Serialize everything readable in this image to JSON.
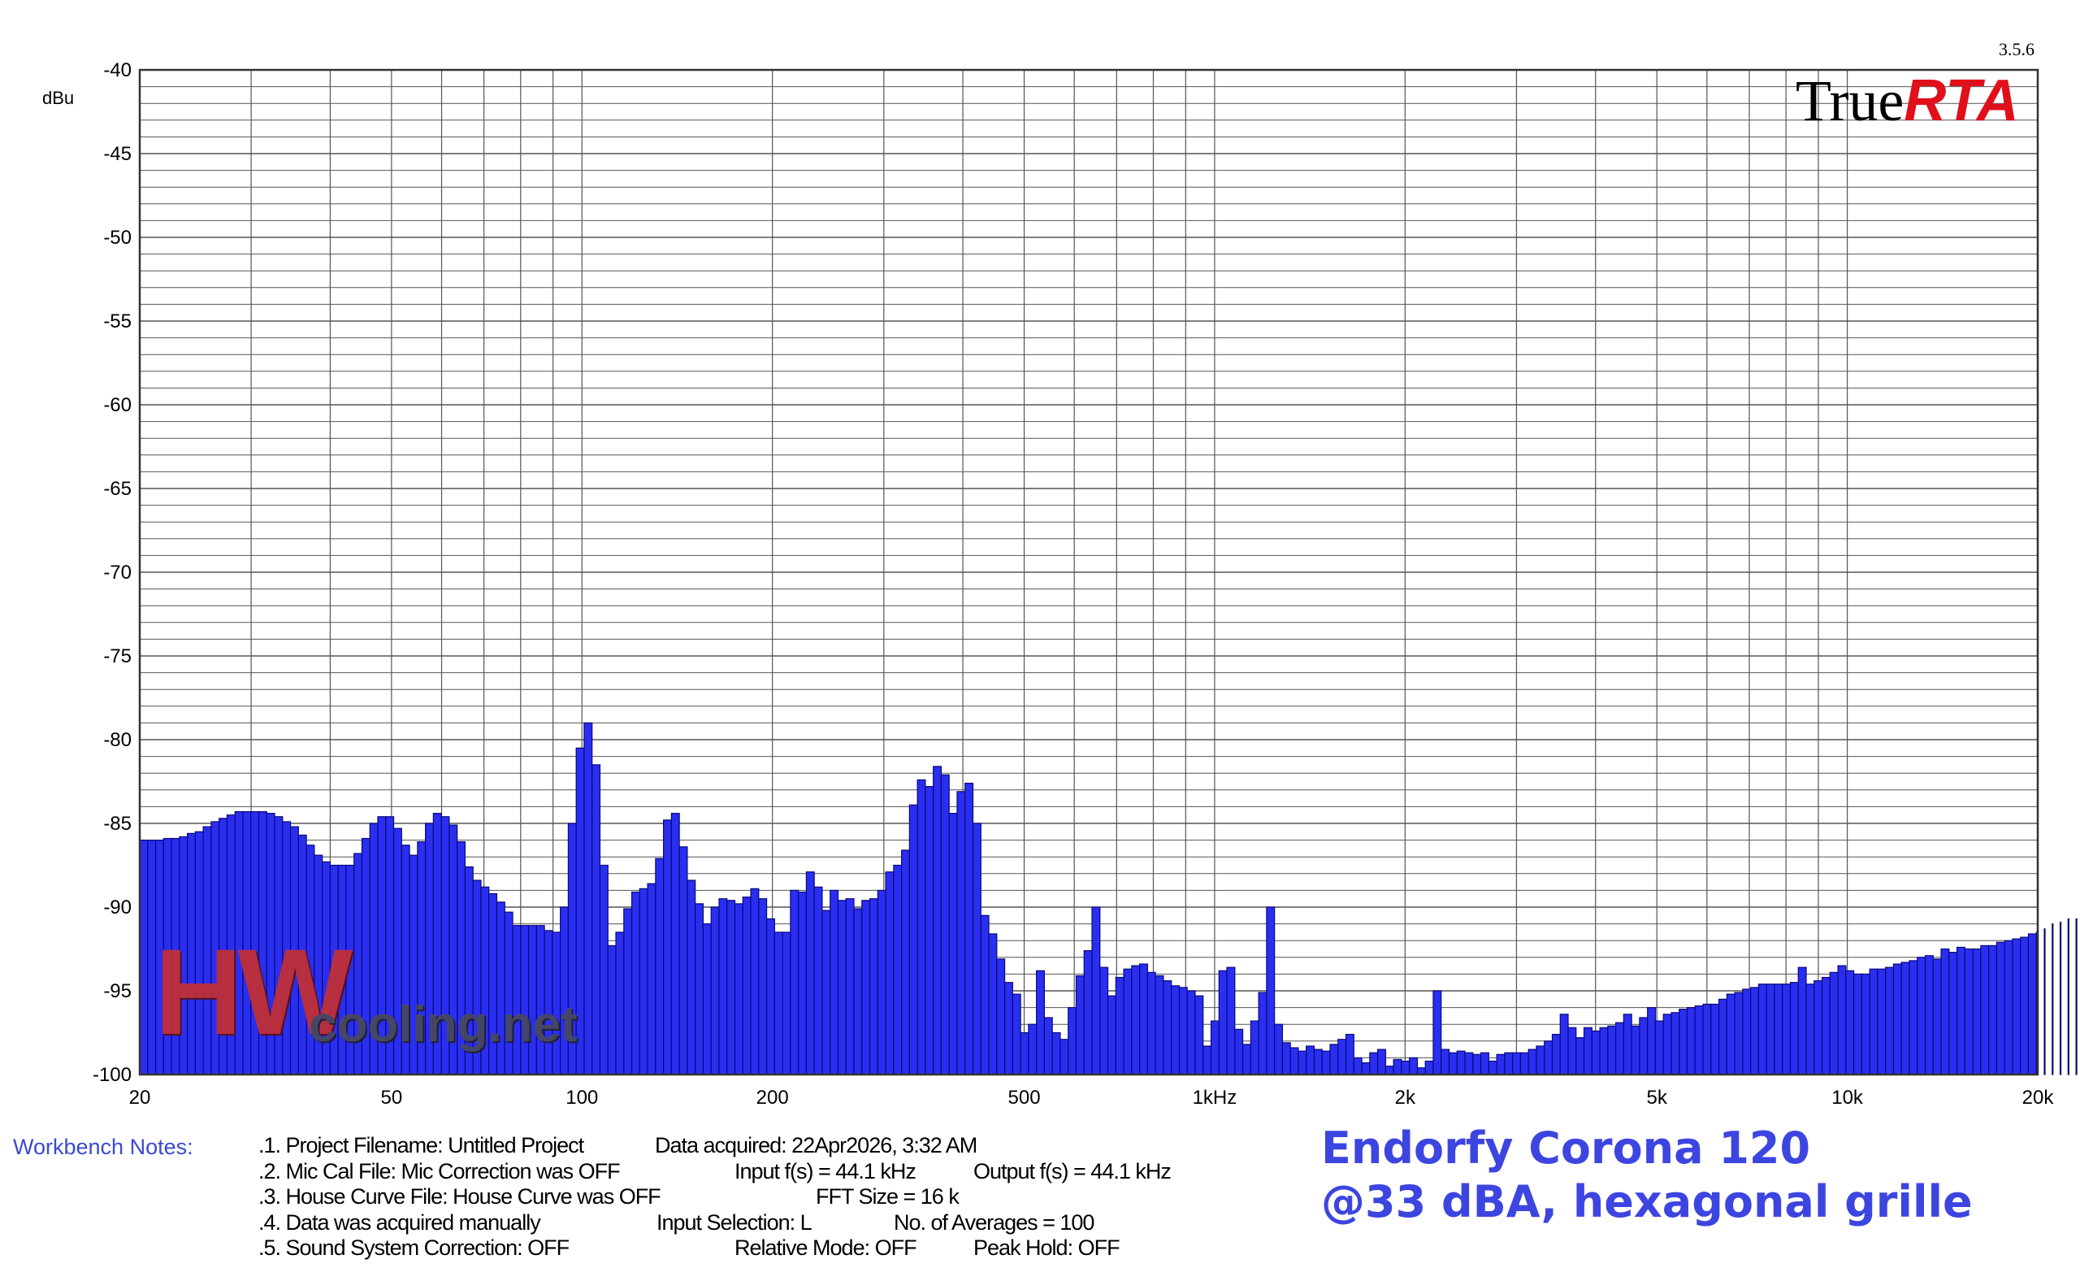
{
  "app": {
    "version": "3.5.6",
    "brand_part1": "True",
    "brand_part2": "RTA"
  },
  "watermark": {
    "logo": "HW",
    "site": "cooling.net"
  },
  "colors": {
    "bar_fill": "#2a2ef0",
    "bar_stroke": "#0a0a7a",
    "grid": "#555555",
    "headline": "#3d45e0",
    "notes_title": "#3a4bd0",
    "brand_red": "#e0101a"
  },
  "chart_data": {
    "type": "bar",
    "y_unit": "dBu",
    "ylim": [
      -100,
      -40
    ],
    "y_ticks": [
      -40,
      -45,
      -50,
      -55,
      -60,
      -65,
      -70,
      -75,
      -80,
      -85,
      -90,
      -95,
      -100
    ],
    "xlim": [
      20,
      20000
    ],
    "x_scale": "log",
    "x_ticks": [
      {
        "value": 20,
        "label": "20"
      },
      {
        "value": 50,
        "label": "50"
      },
      {
        "value": 100,
        "label": "100"
      },
      {
        "value": 200,
        "label": "200"
      },
      {
        "value": 500,
        "label": "500"
      },
      {
        "value": 1000,
        "label": "1kHz"
      },
      {
        "value": 2000,
        "label": "2k"
      },
      {
        "value": 5000,
        "label": "5k"
      },
      {
        "value": 10000,
        "label": "10k"
      },
      {
        "value": 20000,
        "label": "20k"
      }
    ],
    "grid": true,
    "bands_per_octave": 24,
    "values": [
      -86.0,
      -86.0,
      -86.0,
      -85.9,
      -85.9,
      -85.8,
      -85.6,
      -85.5,
      -85.2,
      -84.9,
      -84.7,
      -84.5,
      -84.3,
      -84.3,
      -84.3,
      -84.3,
      -84.4,
      -84.6,
      -84.9,
      -85.2,
      -85.7,
      -86.3,
      -86.9,
      -87.3,
      -87.5,
      -87.5,
      -87.5,
      -86.8,
      -85.9,
      -85.0,
      -84.6,
      -84.6,
      -85.3,
      -86.3,
      -86.9,
      -86.1,
      -85.0,
      -84.4,
      -84.6,
      -85.1,
      -86.1,
      -87.6,
      -88.4,
      -88.8,
      -89.2,
      -89.7,
      -90.3,
      -91.1,
      -91.1,
      -91.1,
      -91.1,
      -91.4,
      -91.5,
      -90.0,
      -85.0,
      -80.5,
      -79.0,
      -81.5,
      -87.5,
      -92.3,
      -91.5,
      -90.1,
      -89.1,
      -88.9,
      -88.6,
      -87.1,
      -84.8,
      -84.4,
      -86.4,
      -88.4,
      -89.8,
      -91.0,
      -90.0,
      -89.5,
      -89.6,
      -89.8,
      -89.4,
      -88.9,
      -89.5,
      -90.7,
      -91.5,
      -91.5,
      -89.0,
      -89.1,
      -87.9,
      -88.8,
      -90.2,
      -89.0,
      -89.6,
      -89.5,
      -90.1,
      -89.6,
      -89.5,
      -89.0,
      -87.9,
      -87.5,
      -86.6,
      -83.9,
      -82.4,
      -82.8,
      -81.6,
      -82.1,
      -84.4,
      -83.1,
      -82.6,
      -85.0,
      -90.5,
      -91.6,
      -93.1,
      -94.5,
      -95.2,
      -97.5,
      -97.0,
      -93.8,
      -96.6,
      -97.5,
      -97.9,
      -96.0,
      -94.1,
      -92.6,
      -90.0,
      -93.6,
      -95.3,
      -94.2,
      -93.7,
      -93.5,
      -93.4,
      -93.9,
      -94.1,
      -94.4,
      -94.7,
      -94.8,
      -95.0,
      -95.3,
      -98.3,
      -96.8,
      -93.8,
      -93.6,
      -97.3,
      -98.2,
      -96.8,
      -95.1,
      -90.0,
      -97.0,
      -98.1,
      -98.4,
      -98.6,
      -98.3,
      -98.5,
      -98.6,
      -98.2,
      -97.9,
      -97.6,
      -99.0,
      -99.3,
      -98.7,
      -98.5,
      -99.5,
      -99.1,
      -99.2,
      -99.0,
      -99.6,
      -99.2,
      -95.0,
      -98.5,
      -98.7,
      -98.6,
      -98.7,
      -98.8,
      -98.7,
      -99.2,
      -98.8,
      -98.7,
      -98.7,
      -98.7,
      -98.5,
      -98.3,
      -98.0,
      -97.6,
      -96.4,
      -97.2,
      -97.8,
      -97.2,
      -97.4,
      -97.2,
      -97.1,
      -96.9,
      -96.4,
      -97.1,
      -96.6,
      -96.0,
      -96.8,
      -96.4,
      -96.3,
      -96.1,
      -96.0,
      -95.9,
      -95.8,
      -95.8,
      -95.5,
      -95.2,
      -95.1,
      -94.9,
      -94.8,
      -94.6,
      -94.6,
      -94.6,
      -94.6,
      -94.5,
      -93.6,
      -94.6,
      -94.4,
      -94.2,
      -93.9,
      -93.5,
      -93.8,
      -94.0,
      -94.0,
      -93.7,
      -93.7,
      -93.6,
      -93.4,
      -93.3,
      -93.2,
      -93.0,
      -92.9,
      -93.1,
      -92.5,
      -92.7,
      -92.4,
      -92.5,
      -92.5,
      -92.3,
      -92.3,
      -92.1,
      -92.0,
      -91.9,
      -91.8,
      -91.6,
      -91.5,
      -91.3,
      -91.0,
      -90.9,
      -90.7,
      -90.7
    ]
  },
  "notes": {
    "title": "Workbench Notes:",
    "rows": [
      [
        ".1. Project Filename: Untitled Project",
        "Data acquired: 22Apr2026, 3:32 AM",
        ""
      ],
      [
        ".2. Mic Cal File: Mic Correction was OFF",
        "Input f(s) = 44.1 kHz",
        "Output f(s) = 44.1 kHz"
      ],
      [
        ".3. House Curve File: House Curve was OFF",
        "FFT Size = 16 k",
        ""
      ],
      [
        ".4. Data was acquired manually",
        "Input Selection: L",
        "No. of Averages = 100"
      ],
      [
        ".5. Sound System Correction: OFF",
        "Relative Mode:  OFF",
        "Peak Hold: OFF"
      ]
    ]
  },
  "headline": {
    "line1": "Endorfy Corona 120",
    "line2": "@33 dBA, hexagonal grille"
  }
}
